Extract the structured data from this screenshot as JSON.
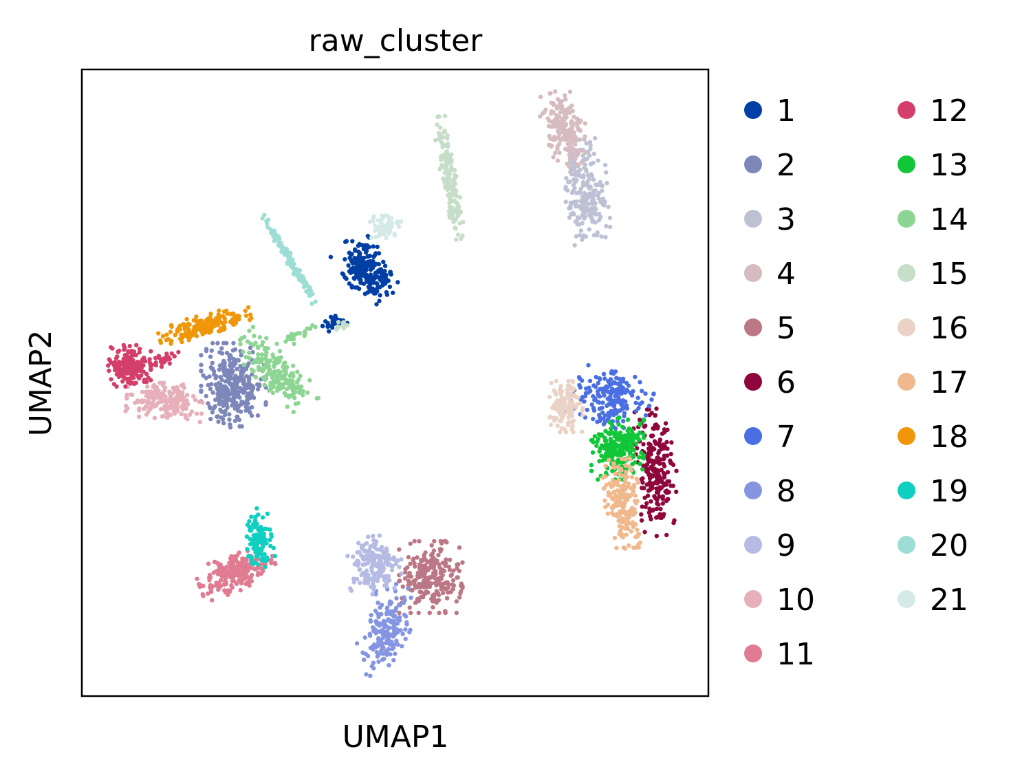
{
  "chart_data": {
    "type": "scatter",
    "title": "raw_cluster",
    "xlabel": "UMAP1",
    "ylabel": "UMAP2",
    "xlim": [
      0,
      100
    ],
    "ylim": [
      0,
      100
    ],
    "grid": false,
    "ticks": "none",
    "legend": {
      "placement": "right",
      "columns": 2,
      "rows_per_column": 11
    },
    "series": [
      {
        "name": "1",
        "color": "#023fa5",
        "clusters": [
          {
            "cx": 45.4,
            "cy": 68.1,
            "sx": 3.2,
            "sy": 5.0,
            "rot": 35,
            "n": 230
          },
          {
            "cx": 40.3,
            "cy": 59.7,
            "sx": 1.8,
            "sy": 1.0,
            "rot": 20,
            "n": 30
          }
        ]
      },
      {
        "name": "2",
        "color": "#7d87b9",
        "clusters": [
          {
            "cx": 24.2,
            "cy": 49.6,
            "sx": 4.7,
            "sy": 6.1,
            "rot": 0,
            "n": 320
          }
        ]
      },
      {
        "name": "3",
        "color": "#bec1d4",
        "clusters": [
          {
            "cx": 80.4,
            "cy": 80.5,
            "sx": 3.2,
            "sy": 7.6,
            "rot": 5,
            "n": 210
          }
        ]
      },
      {
        "name": "4",
        "color": "#d6bcc0",
        "clusters": [
          {
            "cx": 77.1,
            "cy": 90.6,
            "sx": 3.0,
            "sy": 5.5,
            "rot": 20,
            "n": 190
          }
        ]
      },
      {
        "name": "5",
        "color": "#bb7784",
        "clusters": [
          {
            "cx": 55.7,
            "cy": 19.0,
            "sx": 4.6,
            "sy": 5.2,
            "rot": 0,
            "n": 230
          }
        ]
      },
      {
        "name": "6",
        "color": "#8e063b",
        "clusters": [
          {
            "cx": 91.6,
            "cy": 35.7,
            "sx": 3.0,
            "sy": 9.2,
            "rot": 5,
            "n": 220
          }
        ]
      },
      {
        "name": "7",
        "color": "#4a6fe3",
        "clusters": [
          {
            "cx": 84.6,
            "cy": 47.6,
            "sx": 5.5,
            "sy": 4.0,
            "rot": -20,
            "n": 190
          }
        ]
      },
      {
        "name": "8",
        "color": "#8595e1",
        "clusters": [
          {
            "cx": 48.5,
            "cy": 10.4,
            "sx": 3.3,
            "sy": 6.9,
            "rot": -20,
            "n": 180
          }
        ]
      },
      {
        "name": "9",
        "color": "#b5bbe3",
        "clusters": [
          {
            "cx": 46.7,
            "cy": 20.8,
            "sx": 3.9,
            "sy": 4.5,
            "rot": 0,
            "n": 170
          }
        ]
      },
      {
        "name": "10",
        "color": "#e6afb9",
        "clusters": [
          {
            "cx": 13.2,
            "cy": 47.1,
            "sx": 5.5,
            "sy": 2.6,
            "rot": -5,
            "n": 190
          }
        ]
      },
      {
        "name": "11",
        "color": "#e07b91",
        "clusters": [
          {
            "cx": 24.7,
            "cy": 19.7,
            "sx": 5.7,
            "sy": 2.6,
            "rot": 20,
            "n": 210
          }
        ]
      },
      {
        "name": "12",
        "color": "#d33f6a",
        "clusters": [
          {
            "cx": 7.6,
            "cy": 52.7,
            "sx": 3.1,
            "sy": 3.0,
            "rot": 0,
            "n": 170
          },
          {
            "cx": 13.2,
            "cy": 53.8,
            "sx": 2.2,
            "sy": 1.0,
            "rot": 15,
            "n": 30
          }
        ]
      },
      {
        "name": "13",
        "color": "#11c638",
        "clusters": [
          {
            "cx": 85.5,
            "cy": 39.5,
            "sx": 3.8,
            "sy": 4.5,
            "rot": 0,
            "n": 230
          }
        ]
      },
      {
        "name": "14",
        "color": "#8dd593",
        "clusters": [
          {
            "cx": 31.0,
            "cy": 51.7,
            "sx": 2.6,
            "sy": 7.0,
            "rot": 45,
            "n": 190
          },
          {
            "cx": 33.9,
            "cy": 57.3,
            "sx": 3.4,
            "sy": 0.9,
            "rot": 25,
            "n": 20
          }
        ]
      },
      {
        "name": "15",
        "color": "#c6dec7",
        "clusters": [
          {
            "cx": 58.6,
            "cy": 82.7,
            "sx": 1.1,
            "sy": 9.0,
            "rot": 10,
            "n": 160
          },
          {
            "cx": 41.6,
            "cy": 59.3,
            "sx": 1.0,
            "sy": 0.8,
            "rot": 0,
            "n": 10
          }
        ]
      },
      {
        "name": "16",
        "color": "#ead3c6",
        "clusters": [
          {
            "cx": 77.3,
            "cy": 46.2,
            "sx": 2.4,
            "sy": 3.7,
            "rot": 0,
            "n": 130
          }
        ]
      },
      {
        "name": "17",
        "color": "#f0b98d",
        "clusters": [
          {
            "cx": 86.5,
            "cy": 30.7,
            "sx": 2.7,
            "sy": 6.5,
            "rot": 5,
            "n": 200
          }
        ]
      },
      {
        "name": "18",
        "color": "#ef9708",
        "clusters": [
          {
            "cx": 19.6,
            "cy": 59.2,
            "sx": 6.8,
            "sy": 1.5,
            "rot": 15,
            "n": 170
          }
        ]
      },
      {
        "name": "19",
        "color": "#0fcfc0",
        "clusters": [
          {
            "cx": 28.2,
            "cy": 25.2,
            "sx": 1.9,
            "sy": 4.3,
            "rot": 10,
            "n": 100
          }
        ]
      },
      {
        "name": "20",
        "color": "#9cded6",
        "clusters": [
          {
            "cx": 33.1,
            "cy": 69.8,
            "sx": 0.6,
            "sy": 7.3,
            "rot": 30,
            "n": 110
          }
        ]
      },
      {
        "name": "21",
        "color": "#d5eae7",
        "clusters": [
          {
            "cx": 48.2,
            "cy": 74.9,
            "sx": 2.5,
            "sy": 1.6,
            "rot": 0,
            "n": 70
          }
        ]
      }
    ]
  }
}
